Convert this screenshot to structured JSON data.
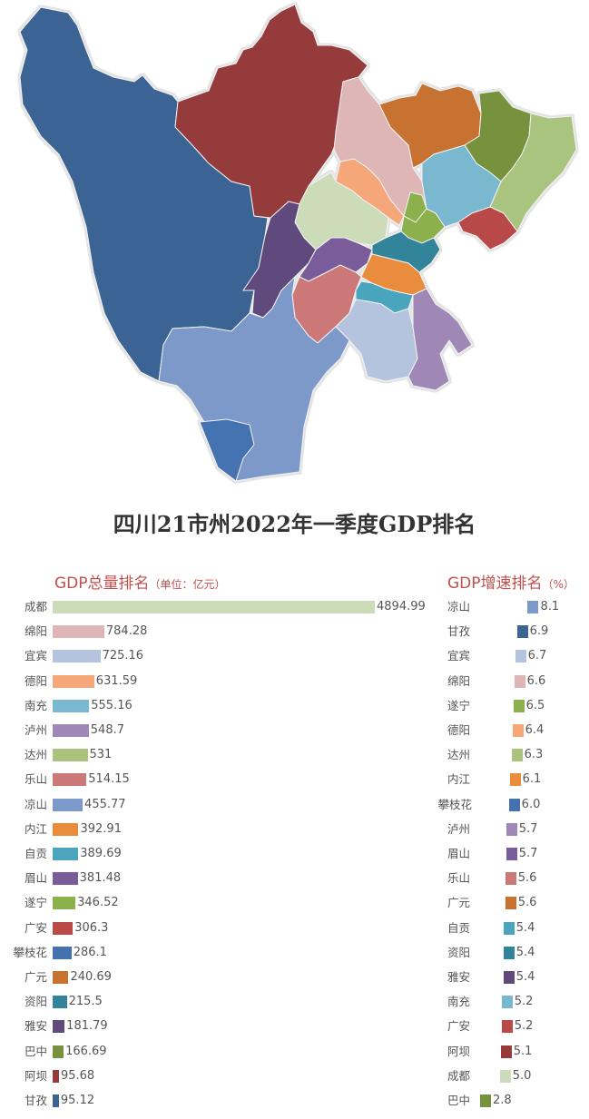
{
  "title": "四川21市州2022年一季度GDP排名",
  "map": {
    "regions": [
      {
        "name": "甘孜",
        "color": "#3b6493"
      },
      {
        "name": "阿坝",
        "color": "#963a3a"
      },
      {
        "name": "绵阳",
        "color": "#dfb6b6"
      },
      {
        "name": "广元",
        "color": "#c87232"
      },
      {
        "name": "巴中",
        "color": "#76923c"
      },
      {
        "name": "达州",
        "color": "#a9c47f"
      },
      {
        "name": "南充",
        "color": "#79b8cf"
      },
      {
        "name": "德阳",
        "color": "#f6a77a"
      },
      {
        "name": "成都",
        "color": "#cddcb8"
      },
      {
        "name": "遂宁",
        "color": "#8cb04c"
      },
      {
        "name": "广安",
        "color": "#b94a48"
      },
      {
        "name": "雅安",
        "color": "#604a7b"
      },
      {
        "name": "眉山",
        "color": "#7a5c9a"
      },
      {
        "name": "资阳",
        "color": "#31849b"
      },
      {
        "name": "内江",
        "color": "#e98c3c"
      },
      {
        "name": "乐山",
        "color": "#cd7878"
      },
      {
        "name": "自贡",
        "color": "#4aa5bd"
      },
      {
        "name": "宜宾",
        "color": "#b4c4de"
      },
      {
        "name": "泸州",
        "color": "#9f88b6"
      },
      {
        "name": "凉山",
        "color": "#7b99c9"
      },
      {
        "name": "攀枝花",
        "color": "#4472b0"
      }
    ]
  },
  "left_header": {
    "title": "GDP总量排名",
    "unit": "（单位：亿元）"
  },
  "right_header": {
    "title": "GDP增速排名",
    "unit": "（%）"
  },
  "chart_data": [
    {
      "type": "bar",
      "orientation": "horizontal",
      "title": "GDP总量排名（单位：亿元）",
      "xlabel": "",
      "ylabel": "",
      "categories": [
        "成都",
        "绵阳",
        "宜宾",
        "德阳",
        "南充",
        "泸州",
        "达州",
        "乐山",
        "凉山",
        "内江",
        "自贡",
        "眉山",
        "遂宁",
        "广安",
        "攀枝花",
        "广元",
        "资阳",
        "雅安",
        "巴中",
        "阿坝",
        "甘孜"
      ],
      "values": [
        4894.99,
        784.28,
        725.16,
        631.59,
        555.16,
        548.7,
        531,
        514.15,
        455.77,
        392.91,
        389.69,
        381.48,
        346.52,
        306.3,
        286.1,
        240.69,
        215.5,
        181.79,
        166.69,
        95.68,
        95.12
      ],
      "value_labels": [
        "4894.99",
        "784.28",
        "725.16",
        "631.59",
        "555.16",
        "548.7",
        "531",
        "514.15",
        "455.77",
        "392.91",
        "389.69",
        "381.48",
        "346.52",
        "306.3",
        "286.1",
        "240.69",
        "215.5",
        "181.79",
        "166.69",
        "95.68",
        "95.12"
      ],
      "colors": [
        "#cddcb8",
        "#dfb6b6",
        "#b4c4de",
        "#f6a77a",
        "#79b8cf",
        "#9f88b6",
        "#a9c47f",
        "#cd7878",
        "#7b99c9",
        "#e98c3c",
        "#4aa5bd",
        "#7a5c9a",
        "#8cb04c",
        "#b94a48",
        "#4472b0",
        "#c87232",
        "#31849b",
        "#604a7b",
        "#76923c",
        "#963a3a",
        "#3b6493"
      ],
      "xlim": [
        0,
        4894.99
      ],
      "grid": false
    },
    {
      "type": "bar",
      "orientation": "horizontal",
      "title": "GDP增速排名（%）",
      "xlabel": "",
      "ylabel": "",
      "categories": [
        "凉山",
        "甘孜",
        "宜宾",
        "绵阳",
        "遂宁",
        "德阳",
        "达州",
        "内江",
        "攀枝花",
        "泸州",
        "眉山",
        "乐山",
        "广元",
        "自贡",
        "资阳",
        "雅安",
        "南充",
        "广安",
        "阿坝",
        "成都",
        "巴中"
      ],
      "values": [
        8.1,
        6.9,
        6.7,
        6.6,
        6.5,
        6.4,
        6.3,
        6.1,
        6.0,
        5.7,
        5.7,
        5.6,
        5.6,
        5.4,
        5.4,
        5.4,
        5.2,
        5.2,
        5.1,
        5.0,
        2.8
      ],
      "value_labels": [
        "8.1",
        "6.9",
        "6.7",
        "6.6",
        "6.5",
        "6.4",
        "6.3",
        "6.1",
        "6.0",
        "5.7",
        "5.7",
        "5.6",
        "5.6",
        "5.4",
        "5.4",
        "5.4",
        "5.2",
        "5.2",
        "5.1",
        "5.0",
        "2.8"
      ],
      "colors": [
        "#7b99c9",
        "#3b6493",
        "#b4c4de",
        "#dfb6b6",
        "#8cb04c",
        "#f6a77a",
        "#a9c47f",
        "#e98c3c",
        "#4472b0",
        "#9f88b6",
        "#7a5c9a",
        "#cd7878",
        "#c87232",
        "#4aa5bd",
        "#31849b",
        "#604a7b",
        "#79b8cf",
        "#b94a48",
        "#963a3a",
        "#cddcb8",
        "#76923c"
      ],
      "grid": false
    }
  ]
}
